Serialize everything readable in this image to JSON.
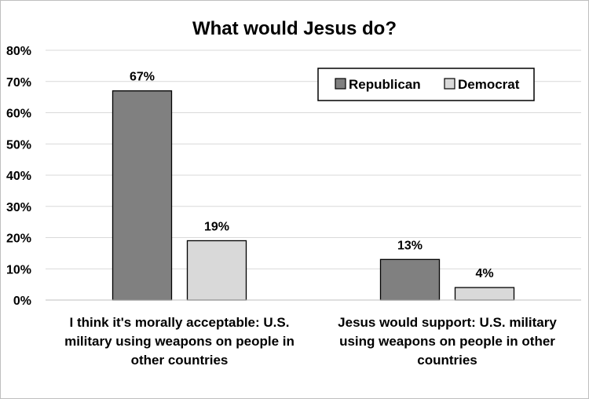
{
  "chart_data": {
    "type": "bar",
    "title": "What would Jesus do?",
    "xlabel": "",
    "ylabel": "",
    "ylim": [
      0,
      80
    ],
    "yticks": [
      "0%",
      "10%",
      "20%",
      "30%",
      "40%",
      "50%",
      "60%",
      "70%",
      "80%"
    ],
    "grid": true,
    "legend_position": "top-right",
    "categories": [
      [
        "I think it's morally acceptable: U.S.",
        "military using weapons on people in",
        "other countries"
      ],
      [
        "Jesus would support: U.S. military",
        "using weapons on people in other",
        "countries"
      ]
    ],
    "series": [
      {
        "name": "Republican",
        "values": [
          67,
          13
        ],
        "labels": [
          "67%",
          "13%"
        ],
        "color": "#808080"
      },
      {
        "name": "Democrat",
        "values": [
          19,
          4
        ],
        "labels": [
          "19%",
          "4%"
        ],
        "color": "#d9d9d9"
      }
    ]
  }
}
